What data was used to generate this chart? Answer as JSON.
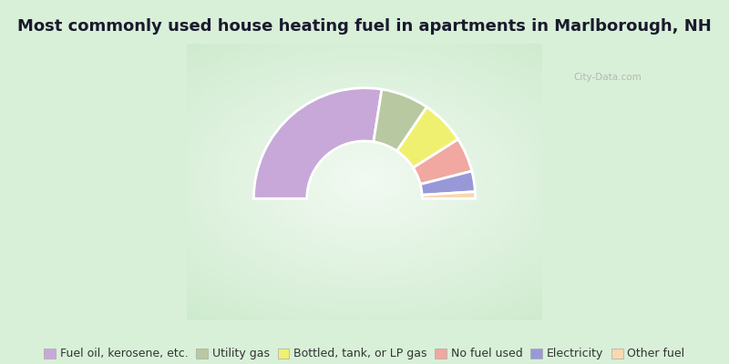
{
  "title": "Most commonly used house heating fuel in apartments in Marlborough, NH",
  "title_fontsize": 13,
  "background_top": "#c8e8c8",
  "background_bottom": "#e8f8f0",
  "segments": [
    {
      "label": "Fuel oil, kerosene, etc.",
      "value": 55,
      "color": "#c8a8d8"
    },
    {
      "label": "Utility gas",
      "value": 14,
      "color": "#b8c8a0"
    },
    {
      "label": "Bottled, tank, or LP gas",
      "value": 13,
      "color": "#f0f070"
    },
    {
      "label": "No fuel used",
      "value": 10,
      "color": "#f0a8a0"
    },
    {
      "label": "Electricity",
      "value": 6,
      "color": "#9898d8"
    },
    {
      "label": "Other fuel",
      "value": 2,
      "color": "#f8d8b0"
    }
  ],
  "donut_outer": 1.0,
  "donut_inner": 0.52,
  "legend_fontsize": 9,
  "watermark": "City-Data.com"
}
